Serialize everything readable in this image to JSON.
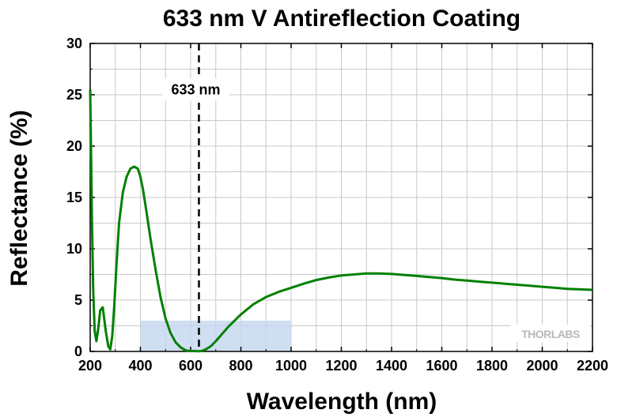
{
  "chart_data": {
    "type": "line",
    "title": "633 nm V Antireflection Coating",
    "xlabel": "Wavelength (nm)",
    "ylabel": "Reflectance (%)",
    "xlim": [
      200,
      2200
    ],
    "ylim": [
      0,
      30
    ],
    "xticks": [
      "200",
      "400",
      "600",
      "800",
      "1000",
      "1200",
      "1400",
      "1600",
      "1800",
      "2000",
      "2200"
    ],
    "yticks": [
      "0",
      "5",
      "10",
      "15",
      "20",
      "25",
      "30"
    ],
    "grid": true,
    "series": [
      {
        "color": "#008000",
        "x": [
          200,
          203,
          207,
          212,
          218,
          225,
          232,
          240,
          250,
          262,
          272,
          280,
          288,
          296,
          305,
          315,
          330,
          345,
          360,
          375,
          390,
          400,
          410,
          425,
          440,
          460,
          480,
          500,
          520,
          540,
          560,
          580,
          600,
          615,
          625,
          633,
          645,
          660,
          680,
          700,
          750,
          800,
          850,
          900,
          950,
          1000,
          1050,
          1100,
          1150,
          1200,
          1250,
          1300,
          1350,
          1400,
          1450,
          1500,
          1550,
          1600,
          1650,
          1700,
          1750,
          1800,
          1850,
          1900,
          1950,
          2000,
          2050,
          2100,
          2150,
          2200
        ],
        "y": [
          25.5,
          20,
          13,
          6,
          2,
          1,
          2.2,
          4,
          4.3,
          2,
          0.5,
          0.2,
          1.5,
          4.5,
          8.5,
          12.5,
          15.5,
          17,
          17.8,
          18,
          17.8,
          17,
          15.8,
          13.5,
          11,
          8,
          5.3,
          3.2,
          1.8,
          0.9,
          0.4,
          0.1,
          0.03,
          0.05,
          0.03,
          0.02,
          0.05,
          0.2,
          0.5,
          1,
          2.4,
          3.6,
          4.6,
          5.3,
          5.8,
          6.2,
          6.6,
          6.95,
          7.2,
          7.4,
          7.5,
          7.6,
          7.6,
          7.55,
          7.45,
          7.35,
          7.25,
          7.15,
          7.0,
          6.9,
          6.8,
          6.7,
          6.6,
          6.5,
          6.4,
          6.3,
          6.2,
          6.1,
          6.05,
          6.0
        ]
      }
    ],
    "marker_line": {
      "x": 633,
      "label": "633 nm"
    },
    "shaded_region": {
      "x": [
        400,
        1000
      ],
      "y": [
        0,
        3
      ],
      "color": "#c8d8f0"
    },
    "logo": "THORLABS"
  }
}
